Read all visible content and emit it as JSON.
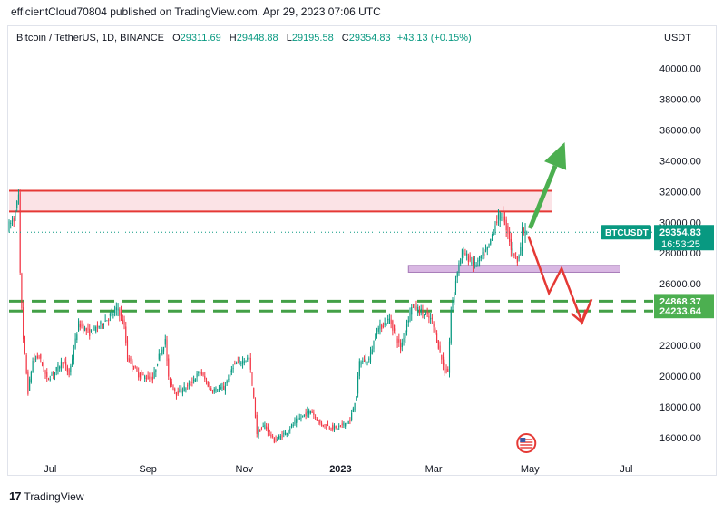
{
  "publisher_line": "efficientCloud70804 published on TradingView.com, Apr 29, 2023 07:06 UTC",
  "legend": {
    "symbol": "Bitcoin / TetherUS, 1D, BINANCE",
    "open_label": "O",
    "open": "29311.69",
    "high_label": "H",
    "high": "29448.88",
    "low_label": "L",
    "low": "29195.58",
    "close_label": "C",
    "close": "29354.83",
    "change": "+43.13 (+0.15%)"
  },
  "currency": "USDT",
  "footer_brand": "TradingView",
  "colors": {
    "up": "#089981",
    "down": "#f23645",
    "resistance": "#e53935",
    "support": "#43a047",
    "zone_fill": "#fbe3e6",
    "support_zone_fill": "#d9b8e3",
    "green_arrow": "#4caf50",
    "red_arrow": "#e53935"
  },
  "chart_data": {
    "type": "candlestick",
    "title": "Bitcoin / TetherUS, 1D, BINANCE",
    "x_ticks": [
      "Jul",
      "Sep",
      "Nov",
      "2023",
      "Mar",
      "May",
      "Jul"
    ],
    "x_tick_dates": [
      "2022-07-01",
      "2022-09-01",
      "2022-11-01",
      "2023-01-01",
      "2023-03-01",
      "2023-05-01",
      "2023-07-01"
    ],
    "x_range": [
      "2022-06-05",
      "2023-07-18"
    ],
    "ylim": [
      15000,
      41500
    ],
    "y_ticks": [
      16000,
      18000,
      20000,
      22000,
      24000,
      26000,
      28000,
      30000,
      32000,
      34000,
      36000,
      38000,
      40000
    ],
    "y_tick_labels": [
      "16000.00",
      "18000.00",
      "20000.00",
      "22000.00",
      "24000.00",
      "26000.00",
      "28000.00",
      "30000.00",
      "32000.00",
      "34000.00",
      "36000.00",
      "38000.00",
      "40000.00"
    ],
    "last_price": {
      "label": "BTCUSDT",
      "value": "29354.83",
      "countdown": "16:53:25"
    },
    "price_labels": [
      {
        "value": 24868.37,
        "text": "24868.37"
      },
      {
        "value": 24233.64,
        "text": "24233.64"
      }
    ],
    "resistance_zone": {
      "from": "2022-06-05",
      "to": "2023-05-15",
      "low": 30700,
      "high": 32050
    },
    "support_zone": {
      "from": "2023-02-13",
      "to": "2023-06-27",
      "low": 26750,
      "high": 27200
    },
    "dashed_lines": [
      24868.37,
      24233.64
    ],
    "arrow_up": {
      "from": [
        "2023-05-01",
        29600
      ],
      "to": [
        "2023-05-23",
        35200
      ]
    },
    "arrow_down": [
      [
        "2023-04-30",
        29100
      ],
      [
        "2023-05-13",
        25400
      ],
      [
        "2023-05-21",
        27000
      ],
      [
        "2023-06-03",
        23500
      ],
      [
        "2023-06-09",
        25000
      ]
    ],
    "price_path": [
      [
        "2022-06-05",
        29700
      ],
      [
        "2022-06-09",
        30200
      ],
      [
        "2022-06-12",
        31700
      ],
      [
        "2022-06-13",
        26500
      ],
      [
        "2022-06-15",
        22500
      ],
      [
        "2022-06-18",
        19000
      ],
      [
        "2022-06-21",
        21000
      ],
      [
        "2022-06-25",
        21300
      ],
      [
        "2022-06-30",
        19800
      ],
      [
        "2022-07-05",
        20300
      ],
      [
        "2022-07-10",
        21000
      ],
      [
        "2022-07-14",
        20100
      ],
      [
        "2022-07-20",
        23400
      ],
      [
        "2022-07-27",
        22800
      ],
      [
        "2022-08-01",
        23200
      ],
      [
        "2022-08-08",
        23800
      ],
      [
        "2022-08-14",
        24400
      ],
      [
        "2022-08-18",
        23200
      ],
      [
        "2022-08-20",
        21200
      ],
      [
        "2022-08-27",
        20100
      ],
      [
        "2022-09-05",
        19800
      ],
      [
        "2022-09-09",
        21300
      ],
      [
        "2022-09-13",
        22300
      ],
      [
        "2022-09-15",
        19800
      ],
      [
        "2022-09-20",
        18900
      ],
      [
        "2022-09-28",
        19400
      ],
      [
        "2022-10-05",
        20300
      ],
      [
        "2022-10-12",
        19100
      ],
      [
        "2022-10-20",
        19200
      ],
      [
        "2022-10-26",
        20700
      ],
      [
        "2022-11-05",
        21200
      ],
      [
        "2022-11-08",
        18500
      ],
      [
        "2022-11-10",
        16300
      ],
      [
        "2022-11-15",
        16800
      ],
      [
        "2022-11-21",
        15800
      ],
      [
        "2022-11-28",
        16300
      ],
      [
        "2022-12-05",
        17100
      ],
      [
        "2022-12-14",
        17800
      ],
      [
        "2022-12-20",
        16900
      ],
      [
        "2022-12-30",
        16600
      ],
      [
        "2023-01-08",
        17100
      ],
      [
        "2023-01-12",
        18800
      ],
      [
        "2023-01-14",
        20900
      ],
      [
        "2023-01-20",
        21100
      ],
      [
        "2023-01-25",
        23000
      ],
      [
        "2023-02-02",
        23700
      ],
      [
        "2023-02-09",
        21800
      ],
      [
        "2023-02-16",
        24600
      ],
      [
        "2023-02-22",
        24200
      ],
      [
        "2023-03-01",
        23600
      ],
      [
        "2023-03-09",
        20300
      ],
      [
        "2023-03-11",
        20300
      ],
      [
        "2023-03-13",
        24200
      ],
      [
        "2023-03-17",
        26900
      ],
      [
        "2023-03-20",
        28100
      ],
      [
        "2023-03-28",
        27200
      ],
      [
        "2023-04-05",
        28200
      ],
      [
        "2023-04-11",
        30200
      ],
      [
        "2023-04-14",
        30500
      ],
      [
        "2023-04-18",
        29400
      ],
      [
        "2023-04-20",
        28300
      ],
      [
        "2023-04-24",
        27600
      ],
      [
        "2023-04-26",
        28400
      ],
      [
        "2023-04-27",
        29400
      ],
      [
        "2023-04-29",
        29354
      ]
    ]
  }
}
